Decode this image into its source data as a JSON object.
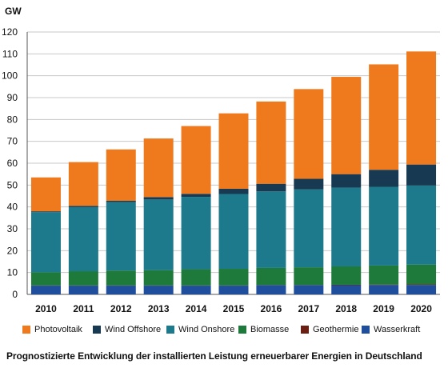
{
  "chart_data": {
    "type": "bar",
    "stacked": true,
    "unit_label": "GW",
    "ylim": [
      0,
      120
    ],
    "yticks": [
      0,
      10,
      20,
      30,
      40,
      50,
      60,
      70,
      80,
      90,
      100,
      110,
      120
    ],
    "grid": true,
    "legend_position": "bottom",
    "categories": [
      "2010",
      "2011",
      "2012",
      "2013",
      "2014",
      "2015",
      "2016",
      "2017",
      "2018",
      "2019",
      "2020"
    ],
    "series": [
      {
        "name": "Wasserkraft",
        "color": "#1f4e9c",
        "values": [
          4.0,
          4.0,
          4.0,
          4.0,
          4.0,
          4.0,
          4.2,
          4.2,
          4.2,
          4.3,
          4.3
        ]
      },
      {
        "name": "Geothermie",
        "color": "#6b1f12",
        "values": [
          0.1,
          0.1,
          0.1,
          0.1,
          0.1,
          0.1,
          0.1,
          0.1,
          0.2,
          0.2,
          0.3
        ]
      },
      {
        "name": "Biomasse",
        "color": "#1e7a3a",
        "values": [
          6.0,
          6.5,
          6.8,
          7.0,
          7.4,
          7.6,
          7.8,
          8.1,
          8.4,
          8.7,
          9.0
        ]
      },
      {
        "name": "Wind Onshore",
        "color": "#1d7a8c",
        "values": [
          27.5,
          29.3,
          31.3,
          32.3,
          33.1,
          34.2,
          35.0,
          35.6,
          36.0,
          36.0,
          36.2
        ]
      },
      {
        "name": "Wind Offshore",
        "color": "#173a52",
        "values": [
          0.4,
          0.6,
          0.6,
          1.1,
          1.4,
          2.4,
          3.5,
          4.9,
          6.2,
          7.8,
          9.6
        ]
      },
      {
        "name": "Photovoltaik",
        "color": "#ef7a1e",
        "values": [
          15.5,
          20.0,
          23.5,
          26.8,
          31.0,
          34.5,
          37.6,
          41.0,
          44.5,
          48.2,
          51.7
        ]
      }
    ],
    "legend_order": [
      "Photovoltaik",
      "Wind Offshore",
      "Wind Onshore",
      "Biomasse",
      "Geothermie",
      "Wasserkraft"
    ],
    "caption": "Prognostizierte Entwicklung der installierten Leistung erneuerbarer Energien in Deutschland"
  }
}
